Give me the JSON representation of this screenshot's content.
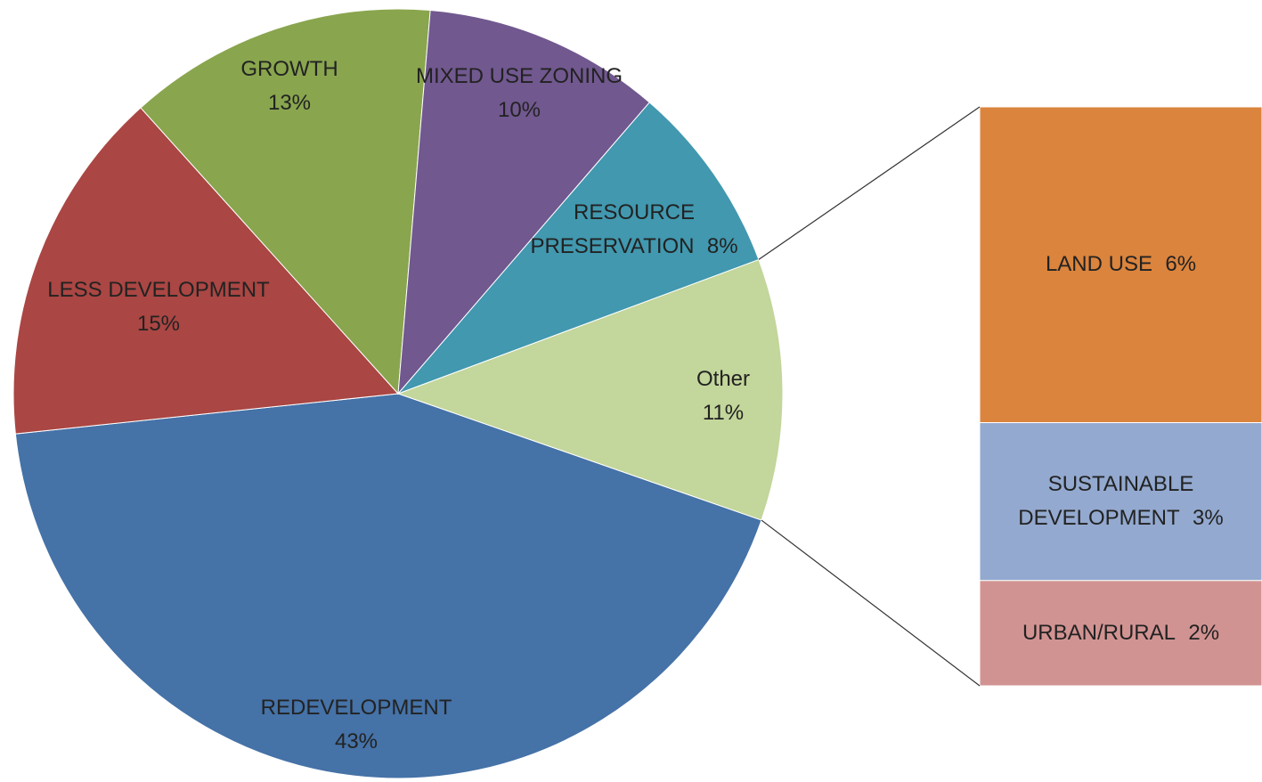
{
  "chart_data": {
    "type": "pie-of-bar",
    "categories": [
      "Other",
      "REDEVELOPMENT",
      "LESS DEVELOPMENT",
      "GROWTH",
      "MIXED USE ZONING",
      "RESOURCE PRESERVATION"
    ],
    "values": [
      11,
      43,
      15,
      13,
      10,
      8
    ],
    "value_labels": [
      "11%",
      "43%",
      "15%",
      "13%",
      "10%",
      "8%"
    ],
    "colors": [
      "#c3d69b",
      "#4572a7",
      "#aa4643",
      "#89a54e",
      "#71588f",
      "#4198af"
    ],
    "bar": {
      "categories": [
        "LAND USE",
        "SUSTAINABLE DEVELOPMENT",
        "URBAN/RURAL"
      ],
      "values": [
        6,
        3,
        2
      ],
      "value_labels": [
        "6%",
        "3%",
        "2%"
      ],
      "colors": [
        "#db843d",
        "#93a9cf",
        "#d19392"
      ]
    }
  }
}
